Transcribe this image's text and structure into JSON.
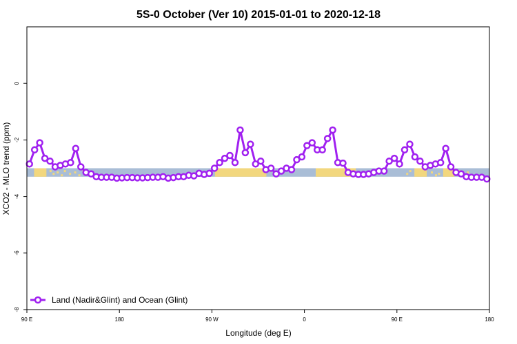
{
  "chart_data": {
    "type": "line",
    "title": "5S-0 October (Ver 10)   2015-01-01 to 2020-12-18",
    "xlabel": "Longitude (deg E)",
    "ylabel": "XCO2 - MLO trend (ppm)",
    "x_ticks": [
      {
        "value": 0,
        "label": "90 E"
      },
      {
        "value": 90,
        "label": "180"
      },
      {
        "value": 180,
        "label": "90 W"
      },
      {
        "value": 270,
        "label": "0"
      },
      {
        "value": 360,
        "label": "90 E"
      },
      {
        "value": 450,
        "label": "180"
      }
    ],
    "y_ticks": [
      0,
      -2,
      -4,
      -6,
      -8
    ],
    "xlim": [
      0,
      450
    ],
    "ylim": [
      -8,
      2
    ],
    "legend": "bottom-left",
    "grid": false,
    "series": [
      {
        "name": "Land (Nadir&Glint) and Ocean (Glint)",
        "color": "#a020f0",
        "x": [
          2.5,
          7.5,
          12.5,
          17.5,
          22.5,
          27.5,
          32.5,
          37.5,
          42.5,
          47.5,
          52.5,
          57.5,
          62.5,
          67.5,
          72.5,
          77.5,
          82.5,
          87.5,
          92.5,
          97.5,
          102.5,
          107.5,
          112.5,
          117.5,
          122.5,
          127.5,
          132.5,
          137.5,
          142.5,
          147.5,
          152.5,
          157.5,
          162.5,
          167.5,
          172.5,
          177.5,
          182.5,
          187.5,
          192.5,
          197.5,
          202.5,
          207.5,
          212.5,
          217.5,
          222.5,
          227.5,
          232.5,
          237.5,
          242.5,
          247.5,
          252.5,
          257.5,
          262.5,
          267.5,
          272.5,
          277.5,
          282.5,
          287.5,
          292.5,
          297.5,
          302.5,
          307.5,
          312.5,
          317.5,
          322.5,
          327.5,
          332.5,
          337.5,
          342.5,
          347.5,
          352.5,
          357.5,
          362.5,
          367.5,
          372.5,
          377.5,
          382.5,
          387.5,
          392.5,
          397.5,
          402.5,
          407.5,
          412.5,
          417.5,
          422.5,
          427.5,
          432.5,
          437.5,
          442.5,
          447.5
        ],
        "y": [
          -2.85,
          -2.35,
          -2.1,
          -2.65,
          -2.75,
          -2.95,
          -2.9,
          -2.85,
          -2.8,
          -2.3,
          -2.95,
          -3.15,
          -3.2,
          -3.3,
          -3.32,
          -3.32,
          -3.32,
          -3.35,
          -3.34,
          -3.33,
          -3.33,
          -3.34,
          -3.34,
          -3.33,
          -3.32,
          -3.32,
          -3.3,
          -3.35,
          -3.33,
          -3.3,
          -3.3,
          -3.25,
          -3.27,
          -3.18,
          -3.22,
          -3.18,
          -3.0,
          -2.8,
          -2.65,
          -2.55,
          -2.8,
          -1.65,
          -2.45,
          -2.15,
          -2.85,
          -2.75,
          -3.05,
          -3.0,
          -3.2,
          -3.1,
          -3.0,
          -3.05,
          -2.7,
          -2.6,
          -2.2,
          -2.1,
          -2.35,
          -2.35,
          -1.95,
          -1.65,
          -2.8,
          -2.82,
          -3.15,
          -3.2,
          -3.22,
          -3.22,
          -3.2,
          -3.15,
          -3.1,
          -3.1,
          -2.75,
          -2.65,
          -2.85,
          -2.35,
          -2.15,
          -2.6,
          -2.75,
          -2.95,
          -2.9,
          -2.85,
          -2.8,
          -2.3,
          -2.95,
          -3.15,
          -3.2,
          -3.3,
          -3.32,
          -3.32,
          -3.32,
          -3.38
        ]
      }
    ]
  }
}
